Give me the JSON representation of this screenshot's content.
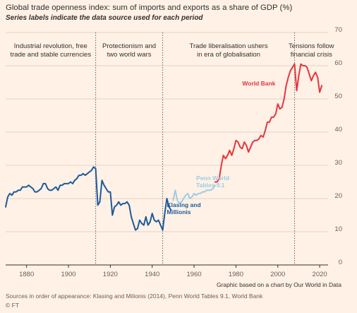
{
  "chart_data": {
    "type": "line",
    "title": "Global trade openness index: sum of imports and exports as a share of GDP (%)",
    "subtitle": "Series labels indicate the data source used for each period",
    "ylim": [
      0,
      70
    ],
    "yticks": [
      0,
      10,
      20,
      30,
      40,
      50,
      60,
      70
    ],
    "xlim": [
      1870,
      2024
    ],
    "xticks": [
      1880,
      1900,
      1920,
      1940,
      1960,
      1980,
      2000,
      2020
    ],
    "grid": true,
    "period_dividers": [
      1913,
      1945,
      2008
    ],
    "periods": [
      {
        "label_lines": [
          "Industrial revolution, free",
          "trade and stable currencies"
        ],
        "x_center": 1891.5
      },
      {
        "label_lines": [
          "Protectionism and",
          "two world wars"
        ],
        "x_center": 1929
      },
      {
        "label_lines": [
          "Trade liberalisation ushers",
          "in era of globalisation"
        ],
        "x_center": 1976.5
      },
      {
        "label_lines": [
          "Tensions follow",
          "financial crisis"
        ],
        "x_center": 2016
      }
    ],
    "series": [
      {
        "name": "Klasing and Millionis",
        "label_lines": [
          "Klasing and",
          "Millionis"
        ],
        "label_anchor": [
          1947,
          17.5
        ],
        "color": "#1c5a9c",
        "x": [
          1870,
          1871,
          1872,
          1873,
          1874,
          1875,
          1876,
          1877,
          1878,
          1879,
          1880,
          1881,
          1882,
          1883,
          1884,
          1885,
          1886,
          1887,
          1888,
          1889,
          1890,
          1891,
          1892,
          1893,
          1894,
          1895,
          1896,
          1897,
          1898,
          1899,
          1900,
          1901,
          1902,
          1903,
          1904,
          1905,
          1906,
          1907,
          1908,
          1909,
          1910,
          1911,
          1912,
          1913,
          1914,
          1915,
          1916,
          1917,
          1918,
          1919,
          1920,
          1921,
          1922,
          1923,
          1924,
          1925,
          1926,
          1927,
          1928,
          1929,
          1930,
          1931,
          1932,
          1933,
          1934,
          1935,
          1936,
          1937,
          1938,
          1939,
          1940,
          1941,
          1942,
          1943,
          1944,
          1945,
          1946,
          1947,
          1948,
          1949
        ],
        "values": [
          17.5,
          20.5,
          21.5,
          21.0,
          22.0,
          22.0,
          22.5,
          22.5,
          23.5,
          23.5,
          23.5,
          24.0,
          23.5,
          23.0,
          22.0,
          22.0,
          22.5,
          23.0,
          24.5,
          24.5,
          23.0,
          22.5,
          22.5,
          23.0,
          23.5,
          22.5,
          24.0,
          24.0,
          24.5,
          24.5,
          24.5,
          25.0,
          24.5,
          25.5,
          26.0,
          27.0,
          27.0,
          27.5,
          27.0,
          27.5,
          28.0,
          28.5,
          29.5,
          29.0,
          18.0,
          19.0,
          25.5,
          24.0,
          23.0,
          22.0,
          22.0,
          15.0,
          17.5,
          18.0,
          19.0,
          18.0,
          18.5,
          18.5,
          19.0,
          18.0,
          14.5,
          12.5,
          10.5,
          11.0,
          13.5,
          12.5,
          12.0,
          14.5,
          12.0,
          13.0,
          15.5,
          13.5,
          13.0,
          13.5,
          12.0,
          10.5,
          15.5,
          20.0,
          17.5,
          16.5
        ]
      },
      {
        "name": "Penn World Tables 9.1",
        "label_lines": [
          "Penn World",
          "Tables 9.1"
        ],
        "label_anchor": [
          1961,
          25.5
        ],
        "color": "#9dcbe8",
        "x": [
          1950,
          1951,
          1952,
          1953,
          1954,
          1955,
          1956,
          1957,
          1958,
          1959,
          1960,
          1961,
          1962,
          1963,
          1964,
          1965,
          1966,
          1967,
          1968,
          1969,
          1970
        ],
        "values": [
          19.5,
          22.5,
          19.5,
          18.5,
          19.0,
          20.0,
          21.0,
          21.5,
          20.0,
          20.5,
          21.5,
          21.0,
          21.5,
          21.5,
          22.0,
          22.0,
          22.5,
          22.5,
          22.5,
          23.0,
          24.0
        ]
      },
      {
        "name": "World Bank",
        "label_lines": [
          "World Bank"
        ],
        "label_anchor": [
          1983,
          54
        ],
        "color": "#e8343f",
        "x": [
          1970,
          1971,
          1972,
          1973,
          1974,
          1975,
          1976,
          1977,
          1978,
          1979,
          1980,
          1981,
          1982,
          1983,
          1984,
          1985,
          1986,
          1987,
          1988,
          1989,
          1990,
          1991,
          1992,
          1993,
          1994,
          1995,
          1996,
          1997,
          1998,
          1999,
          2000,
          2001,
          2002,
          2003,
          2004,
          2005,
          2006,
          2007,
          2008,
          2009,
          2010,
          2011,
          2012,
          2013,
          2014,
          2015,
          2016,
          2017,
          2018,
          2019,
          2020,
          2021
        ],
        "values": [
          25.0,
          25.0,
          26.0,
          30.0,
          33.0,
          32.0,
          33.0,
          34.5,
          33.0,
          35.0,
          37.5,
          37.0,
          35.5,
          35.0,
          37.0,
          36.0,
          34.0,
          35.5,
          37.0,
          37.5,
          37.5,
          38.0,
          39.0,
          38.5,
          40.5,
          43.0,
          43.0,
          44.5,
          44.5,
          45.5,
          48.5,
          47.0,
          47.5,
          50.0,
          54.0,
          56.5,
          58.5,
          59.5,
          60.5,
          52.5,
          57.0,
          60.5,
          60.0,
          60.0,
          59.5,
          57.5,
          55.5,
          57.0,
          58.0,
          56.5,
          52.0,
          54.0
        ]
      }
    ]
  },
  "footer": {
    "credit": "Graphic based on a chart by Our World in Data",
    "source": "Sources in order of appearance: Klasing and Milionis (2014), Penn World Tables 9.1, World Bank",
    "copyright": "© FT"
  },
  "colors": {
    "background": "#fff1e5",
    "grid": "#e0d4c8",
    "divider": "#66605c",
    "text": "#33302e"
  }
}
